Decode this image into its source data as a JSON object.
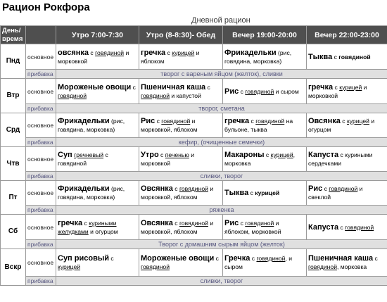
{
  "title": "Рацион Рокфора",
  "subtitle": "Дневной рацион",
  "header": {
    "corner_line1": "День/",
    "corner_line2": "время",
    "slots": [
      "Утро 7:00-7:30",
      "Утро (8-8:30)- Обед",
      "Вечер 19:00-20:00",
      "Вечер 22:00-23:00"
    ]
  },
  "row_labels": {
    "main": "основное",
    "add": "прибавка"
  },
  "days": [
    {
      "name": "Пнд",
      "meals": [
        [
          {
            "t": "овсянка",
            "b": true
          },
          {
            "t": " с "
          },
          {
            "t": "говядиной",
            "u": true
          },
          {
            "t": " и морковкой"
          }
        ],
        [
          {
            "t": "гречка",
            "b": true
          },
          {
            "t": " с "
          },
          {
            "t": "курицей",
            "u": true
          },
          {
            "t": " и яблоком"
          }
        ],
        [
          {
            "t": "Фрикадельки",
            "b": true
          },
          {
            "t": " (рис, говядина, морковка)"
          }
        ],
        [
          {
            "t": "Тыква",
            "b": true
          },
          {
            "t": " с "
          },
          {
            "t": "говядиной",
            "bs": true
          }
        ]
      ],
      "addition": "творог с вареным яйцом (желток), сливки"
    },
    {
      "name": "Втр",
      "meals": [
        [
          {
            "t": "Мороженые овощи",
            "b": true
          },
          {
            "t": " с "
          },
          {
            "t": "говядиной",
            "u": true
          }
        ],
        [
          {
            "t": "Пшеничная каша",
            "b": true
          },
          {
            "t": " с "
          },
          {
            "t": "говядиной",
            "u": true
          },
          {
            "t": " и капустой"
          }
        ],
        [
          {
            "t": "Рис",
            "b": true
          },
          {
            "t": " с "
          },
          {
            "t": "говядиной",
            "u": true
          },
          {
            "t": " и сыром"
          }
        ],
        [
          {
            "t": "гречка",
            "b": true
          },
          {
            "t": " с "
          },
          {
            "t": "курицей",
            "u": true
          },
          {
            "t": " и морковкой"
          }
        ]
      ],
      "addition": "творог, сметана"
    },
    {
      "name": "Срд",
      "meals": [
        [
          {
            "t": "Фрикадельки",
            "b": true
          },
          {
            "t": " (рис, говядина, морковка)"
          }
        ],
        [
          {
            "t": "Рис",
            "b": true
          },
          {
            "t": " с "
          },
          {
            "t": "говядиной",
            "u": true
          },
          {
            "t": " и морковкой, яблоком"
          }
        ],
        [
          {
            "t": "гречка",
            "b": true
          },
          {
            "t": " с "
          },
          {
            "t": "говядиной",
            "u": true
          },
          {
            "t": " на бульоне, тыква"
          }
        ],
        [
          {
            "t": "Овсянка",
            "b": true
          },
          {
            "t": " с "
          },
          {
            "t": "курицей",
            "u": true
          },
          {
            "t": " и огурцом"
          }
        ]
      ],
      "addition": "кефир, (очищенные семечки)"
    },
    {
      "name": "Чтв",
      "meals": [
        [
          {
            "t": "Суп",
            "b": true
          },
          {
            "t": " "
          },
          {
            "t": "гречневый",
            "u": true
          },
          {
            "t": " с говядиной"
          }
        ],
        [
          {
            "t": "Утро",
            "b": true
          },
          {
            "t": " с "
          },
          {
            "t": "печенью",
            "u": true
          },
          {
            "t": " и морковкой"
          }
        ],
        [
          {
            "t": "Макароны",
            "b": true
          },
          {
            "t": " с "
          },
          {
            "t": "курицей",
            "u": true
          },
          {
            "t": ", морковка"
          }
        ],
        [
          {
            "t": "Капуста",
            "b": true
          },
          {
            "t": " с куриными сердечками"
          }
        ]
      ],
      "addition": "сливки, творог"
    },
    {
      "name": "Пт",
      "meals": [
        [
          {
            "t": "Фрикадельки",
            "b": true
          },
          {
            "t": " (рис, говядина, морковка)"
          }
        ],
        [
          {
            "t": "Овсянка",
            "b": true
          },
          {
            "t": " с "
          },
          {
            "t": "говядиной",
            "u": true
          },
          {
            "t": " и морковкой, яблоком"
          }
        ],
        [
          {
            "t": "Тыква",
            "b": true
          },
          {
            "t": " с "
          },
          {
            "t": "курицей",
            "bs": true
          }
        ],
        [
          {
            "t": "Рис",
            "b": true
          },
          {
            "t": " с "
          },
          {
            "t": "говядиной",
            "u": true
          },
          {
            "t": " и свеклой"
          }
        ]
      ],
      "addition": "ряженка"
    },
    {
      "name": "Сб",
      "meals": [
        [
          {
            "t": "гречка",
            "b": true
          },
          {
            "t": " с "
          },
          {
            "t": "куриными желудками",
            "u": true
          },
          {
            "t": " и огурцом"
          }
        ],
        [
          {
            "t": "Овсянка",
            "b": true
          },
          {
            "t": " с "
          },
          {
            "t": "говядиной",
            "u": true
          },
          {
            "t": " и морковкой, яблоком"
          }
        ],
        [
          {
            "t": "Рис",
            "b": true
          },
          {
            "t": " с "
          },
          {
            "t": "говядиной",
            "u": true
          },
          {
            "t": " и яблоком, морковкой"
          }
        ],
        [
          {
            "t": "Капуста",
            "b": true
          },
          {
            "t": " с "
          },
          {
            "t": "говядиной",
            "u": true
          }
        ]
      ],
      "addition": "Творог с домашним сырым яйцом (желток)"
    },
    {
      "name": "Вскр",
      "meals": [
        [
          {
            "t": "Суп рисовый",
            "b": true
          },
          {
            "t": " с "
          },
          {
            "t": "курицей",
            "u": true
          }
        ],
        [
          {
            "t": "Мороженые овощи",
            "b": true
          },
          {
            "t": " с "
          },
          {
            "t": "говядиной",
            "u": true
          }
        ],
        [
          {
            "t": "Гречка",
            "b": true
          },
          {
            "t": " с "
          },
          {
            "t": "говядиной",
            "u": true
          },
          {
            "t": ", и сыром"
          }
        ],
        [
          {
            "t": "Пшеничная каша",
            "b": true
          },
          {
            "t": " с "
          },
          {
            "t": "говядиной",
            "u": true
          },
          {
            "t": ", морковка"
          }
        ]
      ],
      "addition": "сливки, творог"
    }
  ]
}
